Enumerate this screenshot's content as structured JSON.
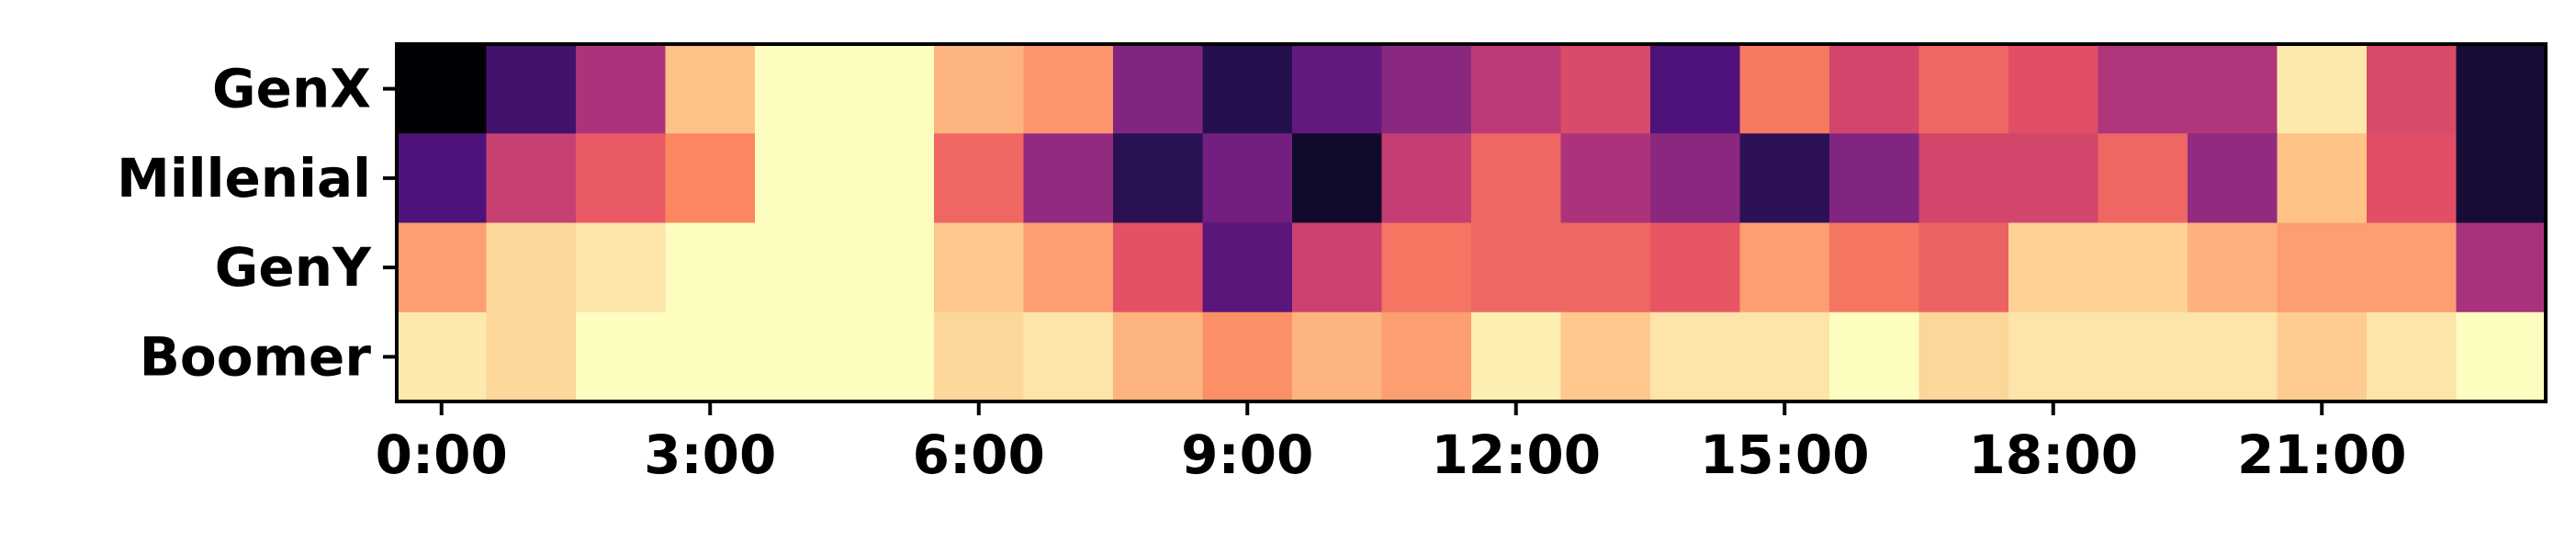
{
  "chart_data": {
    "type": "heatmap",
    "title": "",
    "xlabel": "",
    "ylabel": "",
    "colormap": "magma",
    "value_range": [
      0,
      1
    ],
    "rows": [
      "GenX",
      "Millenial",
      "GenY",
      "Boomer"
    ],
    "columns": [
      "0:00",
      "1:00",
      "2:00",
      "3:00",
      "4:00",
      "5:00",
      "6:00",
      "7:00",
      "8:00",
      "9:00",
      "10:00",
      "11:00",
      "12:00",
      "13:00",
      "14:00",
      "15:00",
      "16:00",
      "17:00",
      "18:00",
      "19:00",
      "20:00",
      "21:00",
      "22:00",
      "23:00"
    ],
    "x_ticks": [
      {
        "hour": 0,
        "label": "0:00"
      },
      {
        "hour": 3,
        "label": "3:00"
      },
      {
        "hour": 6,
        "label": "6:00"
      },
      {
        "hour": 9,
        "label": "9:00"
      },
      {
        "hour": 12,
        "label": "12:00"
      },
      {
        "hour": 15,
        "label": "15:00"
      },
      {
        "hour": 18,
        "label": "18:00"
      },
      {
        "hour": 21,
        "label": "21:00"
      }
    ],
    "values": [
      [
        0.0,
        0.22,
        0.48,
        0.88,
        1.0,
        1.0,
        0.85,
        0.78,
        0.38,
        0.15,
        0.3,
        0.4,
        0.52,
        0.6,
        0.25,
        0.72,
        0.58,
        0.68,
        0.62,
        0.49,
        0.49,
        0.96,
        0.6,
        0.1
      ],
      [
        0.25,
        0.55,
        0.65,
        0.75,
        1.0,
        1.0,
        0.68,
        0.42,
        0.16,
        0.34,
        0.08,
        0.54,
        0.68,
        0.48,
        0.4,
        0.17,
        0.38,
        0.58,
        0.58,
        0.68,
        0.42,
        0.88,
        0.62,
        0.1
      ],
      [
        0.8,
        0.92,
        0.95,
        1.0,
        1.0,
        1.0,
        0.89,
        0.8,
        0.63,
        0.28,
        0.56,
        0.71,
        0.68,
        0.68,
        0.64,
        0.8,
        0.71,
        0.67,
        0.91,
        0.91,
        0.84,
        0.8,
        0.8,
        0.47
      ],
      [
        0.96,
        0.92,
        1.0,
        1.0,
        1.0,
        1.0,
        0.92,
        0.95,
        0.85,
        0.77,
        0.85,
        0.8,
        0.97,
        0.89,
        0.95,
        0.95,
        1.0,
        0.92,
        0.95,
        0.95,
        0.95,
        0.9,
        0.95,
        1.0
      ]
    ]
  }
}
